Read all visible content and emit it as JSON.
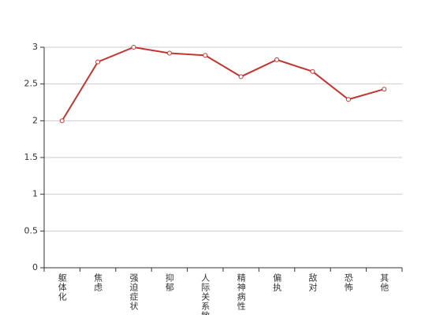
{
  "chart_data": {
    "type": "line",
    "categories": [
      "躯体化",
      "焦虑",
      "强迫症状",
      "抑郁",
      "人际关系敏感",
      "精神病性",
      "偏执",
      "敌对",
      "恐怖",
      "其他"
    ],
    "values": [
      2.0,
      2.8,
      3.0,
      2.92,
      2.89,
      2.6,
      2.83,
      2.67,
      2.29,
      2.43
    ],
    "color": "#c23531",
    "ylim": [
      0,
      3
    ],
    "yticks": [
      0,
      0.5,
      1,
      1.5,
      2,
      2.5,
      3
    ],
    "grid": true
  }
}
